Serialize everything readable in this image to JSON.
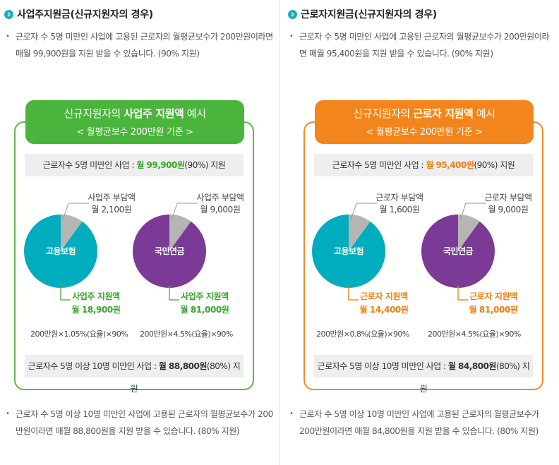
{
  "colors": {
    "icon": "#1eaeb5",
    "employer_green": "#4ab43c",
    "worker_orange": "#f2861c",
    "teal_pie": "#00adbe",
    "purple_pie": "#7a3a96",
    "burden_grey": "#b5b5b5"
  },
  "left": {
    "title": "사업주지원금(신규지원자의 경우)",
    "intro": "근로자 수 5명 미만인 사업에 고용된 근로자의 월평균보수가 200만원이라면 매월 99,900원을 지원 받을 수 있습니다. (90% 지원)",
    "header_pre": "신규지원자의 ",
    "header_bold": "사업주 지원액",
    "header_post": " 예시",
    "header_sub": "< 월평균보수 200만원 기준 >",
    "bar1_pre": "근로자수 5명 미만인 사업 : ",
    "bar1_hi": "월 99,900원",
    "bar1_post": "(90%) 지원",
    "pie1": {
      "label": "고용보험",
      "burden_label": "사업주 부담액",
      "burden_amount": "월 2,100원",
      "support_label": "사업주 지원액",
      "support_amount": "월 18,900원",
      "burden_share": 0.1,
      "formula": "200만원×1.05%(요율)×90%"
    },
    "pie2": {
      "label": "국민연금",
      "burden_label": "사업주 부담액",
      "burden_amount": "월 9,000원",
      "support_label": "사업주 지원액",
      "support_amount": "월 81,000원",
      "burden_share": 0.1,
      "formula": "200만원×4.5%(요율)×90%"
    },
    "bar2_pre": "근로자수 5명 이상 10명 미만인 사업 : ",
    "bar2_hi": "월 88,800원",
    "bar2_post": "(80%) 지원",
    "outro": "근로자 수 5명 이상 10명 미만인 사업에 고용된 근로자의 월평균보수가 200만원이라면 매월 88,800원을 지원 받을 수 있습니다. (80% 지원)"
  },
  "right": {
    "title": "근로자지원금(신규지원자의 경우)",
    "intro": "근로자 수 5명 미만인 사업에 고용된 근로자의 월평균보수가 200만원이라면 매월 95,400원을 지원 받을 수 있습니다. (90% 지원)",
    "header_pre": "신규지원자의 ",
    "header_bold": "근로자 지원액",
    "header_post": " 예시",
    "header_sub": "< 월평균보수 200만원 기준 >",
    "bar1_pre": "근로자수 5명 미만인 사업 : ",
    "bar1_hi": "월 95,400원",
    "bar1_post": "(90%) 지원",
    "pie1": {
      "label": "고용보험",
      "burden_label": "근로자 부담액",
      "burden_amount": "월 1,600원",
      "support_label": "근로자 지원액",
      "support_amount": "월 14,400원",
      "burden_share": 0.1,
      "formula": "200만원×0.8%(요율)×90%"
    },
    "pie2": {
      "label": "국민연금",
      "burden_label": "근로자 부담액",
      "burden_amount": "월 9,000원",
      "support_label": "근로자 지원액",
      "support_amount": "월 81,000원",
      "burden_share": 0.1,
      "formula": "200만원×4.5%(요율)×90%"
    },
    "bar2_pre": "근로자수 5명 이상 10명 미만인 사업 : ",
    "bar2_hi": "월 84,800원",
    "bar2_post": "(80%) 지원",
    "outro": "근로자 수 5명 이상 10명 미만인 사업에 고용된 근로자의 월평균보수가 200만원이라면 매월 84,800원을 지원 받을 수 있습니다. (80% 지원)"
  }
}
